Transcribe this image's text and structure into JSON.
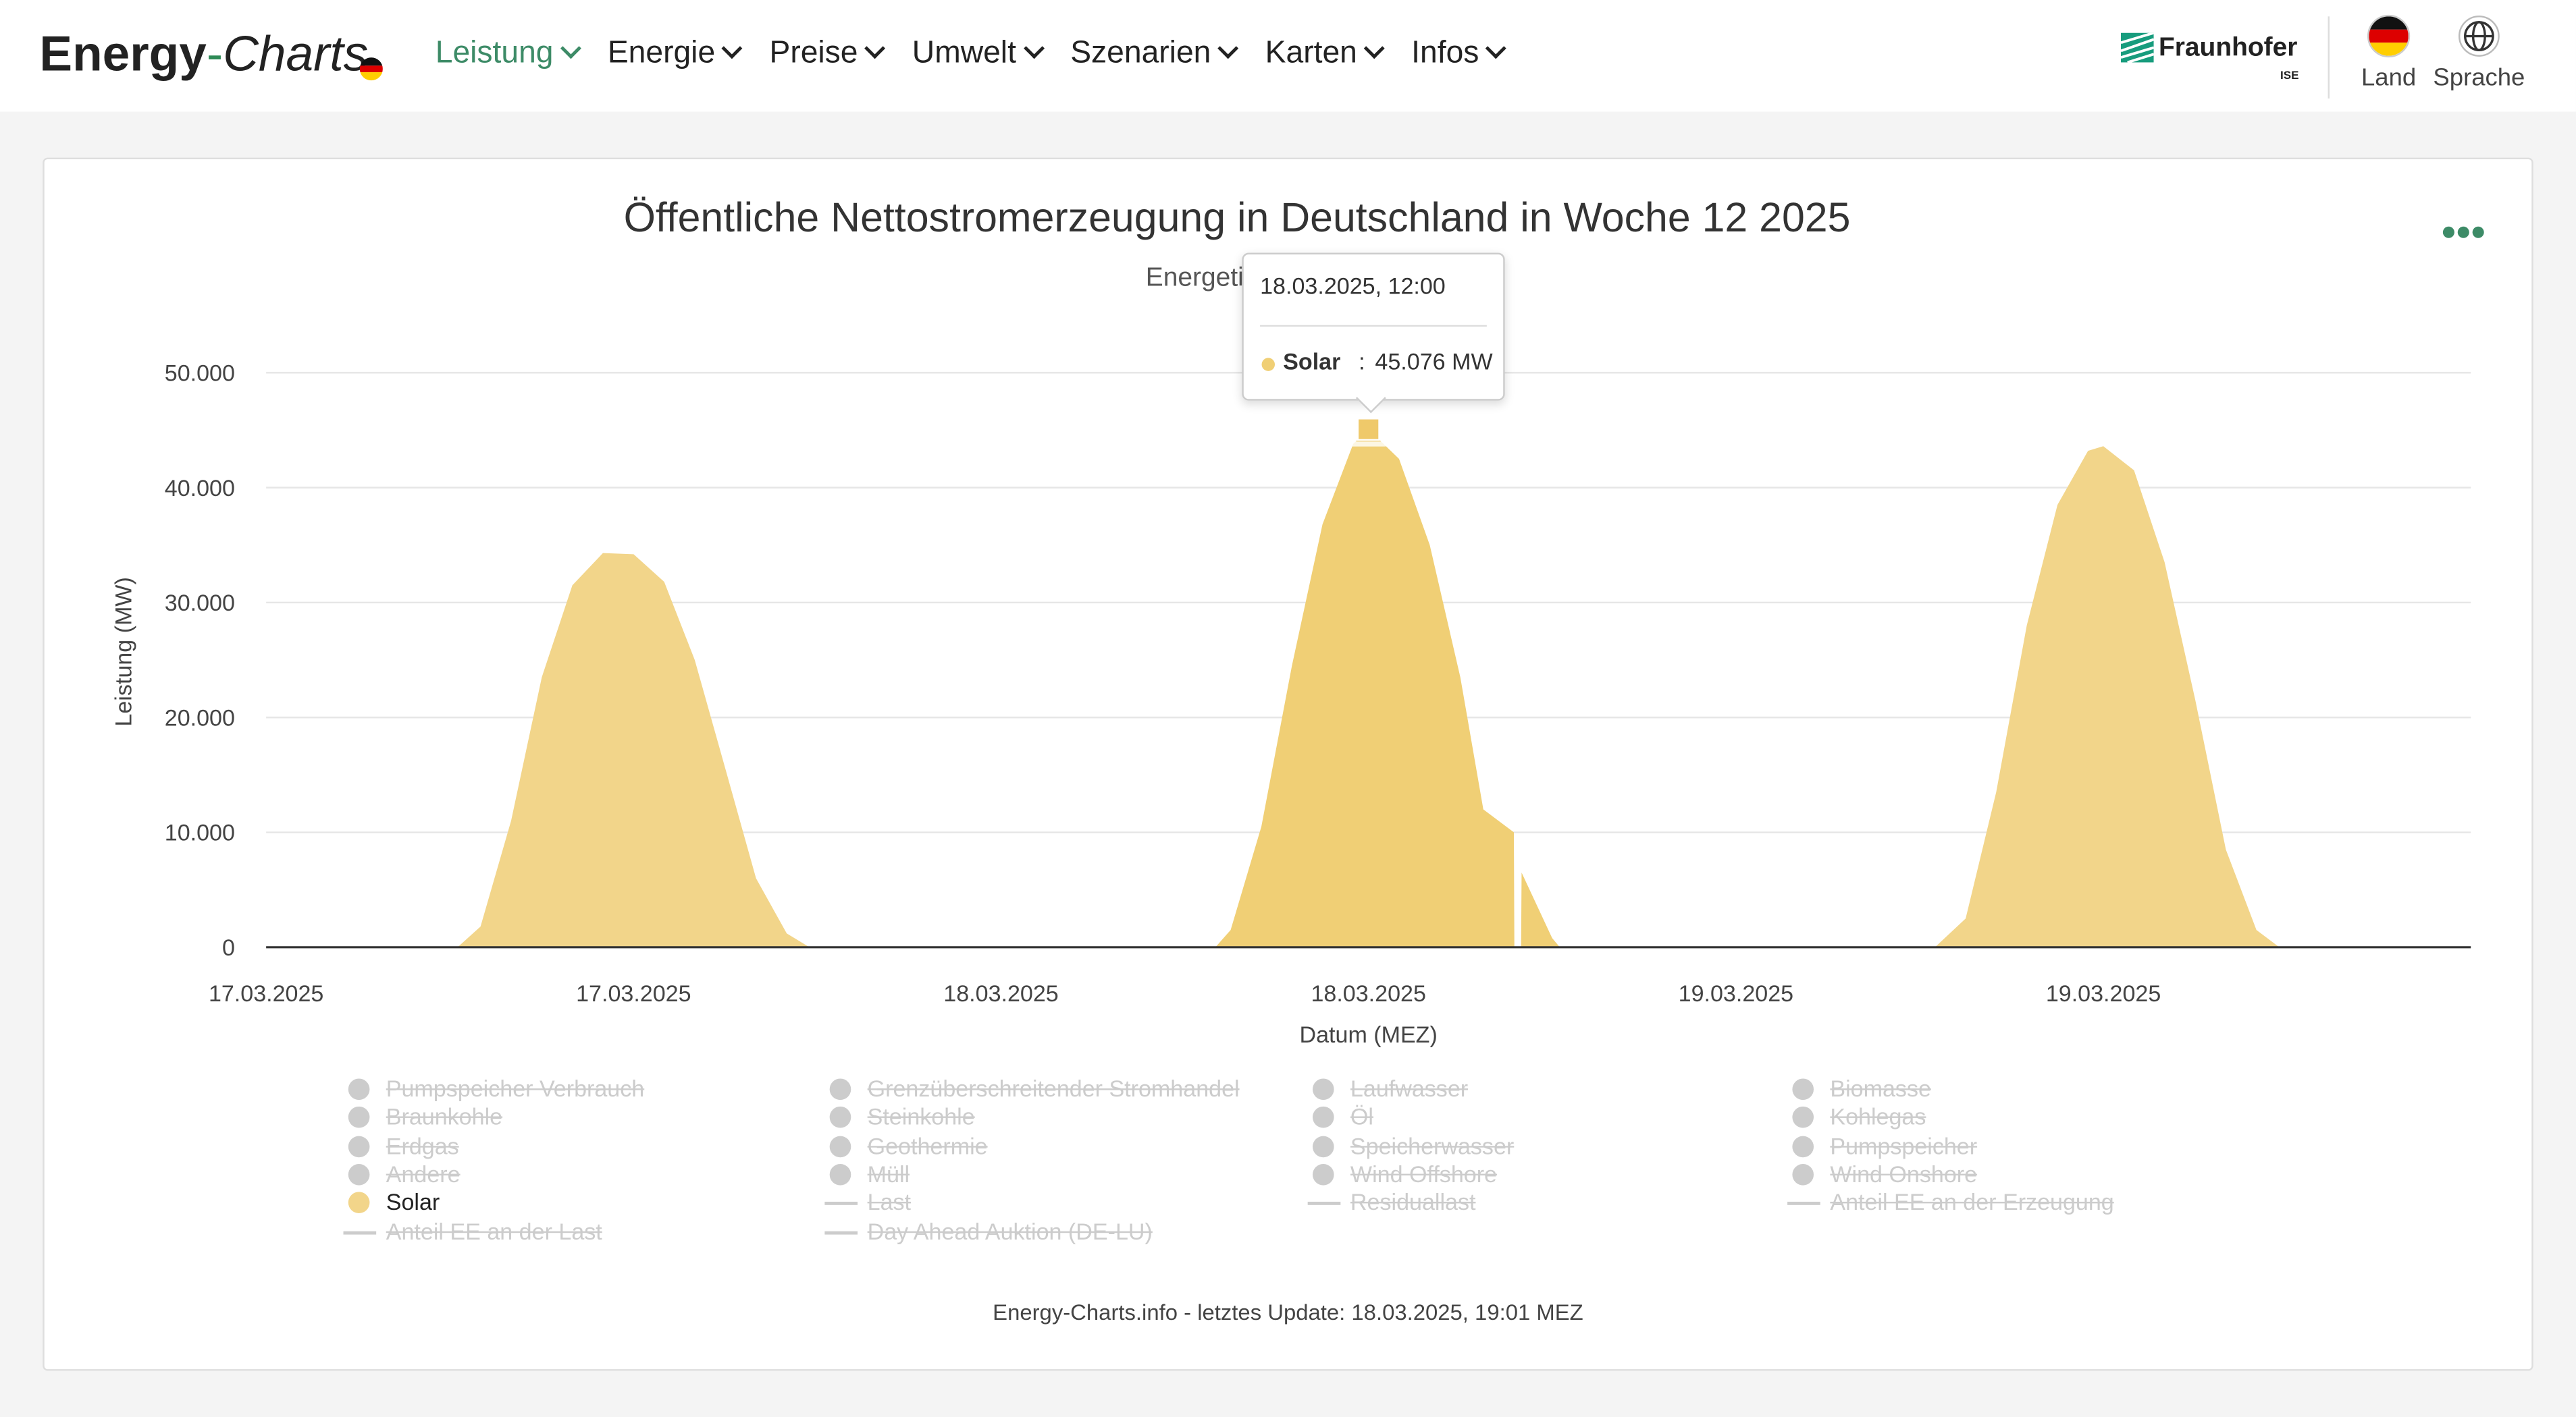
{
  "header": {
    "logo_part1": "Energy",
    "logo_part2": "-",
    "logo_part3": "Charts",
    "nav": [
      "Leistung",
      "Energie",
      "Preise",
      "Umwelt",
      "Szenarien",
      "Karten",
      "Infos"
    ],
    "brand": "Fraunhofer",
    "brand_sub": "ISE",
    "country_label": "Land",
    "language_label": "Sprache"
  },
  "colors": {
    "accent": "#3d8b67",
    "solar": "#f2d58a",
    "solar_active": "#f0cf75",
    "grid": "#e6e6e6",
    "legend_disabled": "#cccccc"
  },
  "chart": {
    "title": "Öffentliche Nettostromerzeugung in Deutschland in Woche 12 2025",
    "subtitle": "Energetisch kor",
    "tooltip": {
      "date": "18.03.2025, 12:00",
      "series": "Solar",
      "separator": ":",
      "value": "45.076 MW"
    },
    "footer": "Energy-Charts.info - letztes Update: 18.03.2025, 19:01 MEZ",
    "legend": [
      {
        "label": "Pumpspeicher Verbrauch",
        "kind": "dot",
        "on": false
      },
      {
        "label": "Grenzüberschreitender Stromhandel",
        "kind": "dot",
        "on": false
      },
      {
        "label": "Laufwasser",
        "kind": "dot",
        "on": false
      },
      {
        "label": "Biomasse",
        "kind": "dot",
        "on": false
      },
      {
        "label": "Braunkohle",
        "kind": "dot",
        "on": false
      },
      {
        "label": "Steinkohle",
        "kind": "dot",
        "on": false
      },
      {
        "label": "Öl",
        "kind": "dot",
        "on": false
      },
      {
        "label": "Kohlegas",
        "kind": "dot",
        "on": false
      },
      {
        "label": "Erdgas",
        "kind": "dot",
        "on": false
      },
      {
        "label": "Geothermie",
        "kind": "dot",
        "on": false
      },
      {
        "label": "Speicherwasser",
        "kind": "dot",
        "on": false
      },
      {
        "label": "Pumpspeicher",
        "kind": "dot",
        "on": false
      },
      {
        "label": "Andere",
        "kind": "dot",
        "on": false
      },
      {
        "label": "Müll",
        "kind": "dot",
        "on": false
      },
      {
        "label": "Wind Offshore",
        "kind": "dot",
        "on": false
      },
      {
        "label": "Wind Onshore",
        "kind": "dot",
        "on": false
      },
      {
        "label": "Solar",
        "kind": "dot",
        "on": true
      },
      {
        "label": "Last",
        "kind": "line",
        "on": false
      },
      {
        "label": "Residuallast",
        "kind": "line",
        "on": false
      },
      {
        "label": "Anteil EE an der Erzeugung",
        "kind": "line",
        "on": false
      },
      {
        "label": "Anteil EE an der Last",
        "kind": "line",
        "on": false
      },
      {
        "label": "Day Ahead Auktion (DE-LU)",
        "kind": "line",
        "on": false
      }
    ]
  },
  "chart_data": {
    "type": "area",
    "title": "Öffentliche Nettostromerzeugung in Deutschland in Woche 12 2025",
    "subtitle": "Energetisch kor",
    "xlabel": "Datum (MEZ)",
    "ylabel": "Leistung (MW)",
    "ylim": [
      0,
      50000
    ],
    "yticks": [
      0,
      10000,
      20000,
      30000,
      40000,
      50000
    ],
    "ytick_labels": [
      "0",
      "10.000",
      "20.000",
      "30.000",
      "40.000",
      "50.000"
    ],
    "xlim": [
      "2025-03-17 00:00",
      "2025-03-19 23:45"
    ],
    "xticks": [
      "2025-03-17 00:00",
      "2025-03-17 12:00",
      "2025-03-18 00:00",
      "2025-03-18 12:00",
      "2025-03-19 00:00",
      "2025-03-19 12:00"
    ],
    "xtick_labels": [
      "17.03.2025",
      "17.03.2025",
      "18.03.2025",
      "18.03.2025",
      "19.03.2025",
      "19.03.2025"
    ],
    "grid": true,
    "legend_position": "bottom",
    "series": [
      {
        "name": "Solar",
        "color": "#f2d58a",
        "points": [
          [
            "2025-03-17 06:15",
            0
          ],
          [
            "2025-03-17 07:00",
            1800
          ],
          [
            "2025-03-17 08:00",
            11000
          ],
          [
            "2025-03-17 09:00",
            23500
          ],
          [
            "2025-03-17 10:00",
            31500
          ],
          [
            "2025-03-17 11:00",
            34300
          ],
          [
            "2025-03-17 12:00",
            34200
          ],
          [
            "2025-03-17 13:00",
            31800
          ],
          [
            "2025-03-17 14:00",
            25000
          ],
          [
            "2025-03-17 15:00",
            15500
          ],
          [
            "2025-03-17 16:00",
            6000
          ],
          [
            "2025-03-17 17:00",
            1200
          ],
          [
            "2025-03-17 17:45",
            0
          ],
          [
            "2025-03-18 07:00",
            0
          ],
          [
            "2025-03-18 07:30",
            1500
          ],
          [
            "2025-03-18 08:30",
            10500
          ],
          [
            "2025-03-18 09:30",
            24500
          ],
          [
            "2025-03-18 10:30",
            36800
          ],
          [
            "2025-03-18 11:30",
            43800
          ],
          [
            "2025-03-18 12:00",
            45076
          ],
          [
            "2025-03-18 13:00",
            42500
          ],
          [
            "2025-03-18 14:00",
            35000
          ],
          [
            "2025-03-18 15:00",
            23500
          ],
          [
            "2025-03-18 15:45",
            12000
          ],
          [
            "2025-03-18 16:45",
            10000
          ],
          [
            "2025-03-18 16:46",
            0
          ],
          [
            "2025-03-18 16:59",
            0
          ],
          [
            "2025-03-18 17:00",
            6500
          ],
          [
            "2025-03-18 18:00",
            800
          ],
          [
            "2025-03-18 18:15",
            0
          ],
          [
            "2025-03-19 06:30",
            0
          ],
          [
            "2025-03-19 07:30",
            2500
          ],
          [
            "2025-03-19 08:30",
            13500
          ],
          [
            "2025-03-19 09:30",
            28000
          ],
          [
            "2025-03-19 10:30",
            38500
          ],
          [
            "2025-03-19 11:30",
            43200
          ],
          [
            "2025-03-19 12:00",
            43600
          ],
          [
            "2025-03-19 13:00",
            41500
          ],
          [
            "2025-03-19 14:00",
            33500
          ],
          [
            "2025-03-19 15:00",
            21500
          ],
          [
            "2025-03-19 16:00",
            8500
          ],
          [
            "2025-03-19 17:00",
            1500
          ],
          [
            "2025-03-19 17:45",
            0
          ]
        ]
      }
    ]
  }
}
